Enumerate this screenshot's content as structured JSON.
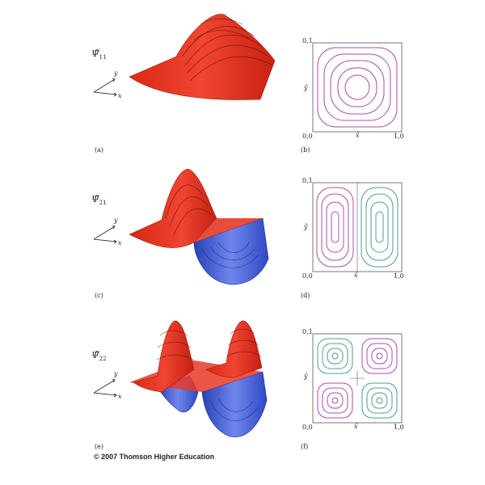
{
  "rows": [
    {
      "psi": {
        "main": "Ψ̃",
        "sub": "11"
      },
      "surface_label": "(a)",
      "contour_label": "(b)",
      "contour_ticks": {
        "top": "0,1",
        "origin": "0,0",
        "right": "1,0",
        "xlabel": "x̃",
        "ylabel": "ỹ"
      }
    },
    {
      "psi": {
        "main": "Ψ̃",
        "sub": "21"
      },
      "surface_label": "(c)",
      "contour_label": "(d)",
      "contour_ticks": {
        "top": "0,1",
        "origin": "0,0",
        "right": "1,0",
        "xlabel": "x̃",
        "ylabel": "ỹ"
      }
    },
    {
      "psi": {
        "main": "Ψ̃",
        "sub": "22"
      },
      "surface_label": "(e)",
      "contour_label": "(f)",
      "contour_ticks": {
        "top": "0,1",
        "origin": "0,0",
        "right": "1,0",
        "xlabel": "x̃",
        "ylabel": "ỹ"
      }
    }
  ],
  "axes_labels": {
    "x": "x",
    "y": "y"
  },
  "colors": {
    "positive": "#e8321e",
    "negative": "#3a5bd9",
    "contour_pos": "#b04aa8",
    "contour_neg": "#4e9a94",
    "frame": "#555555"
  },
  "copyright": "© 2007 Thomson Higher Education"
}
